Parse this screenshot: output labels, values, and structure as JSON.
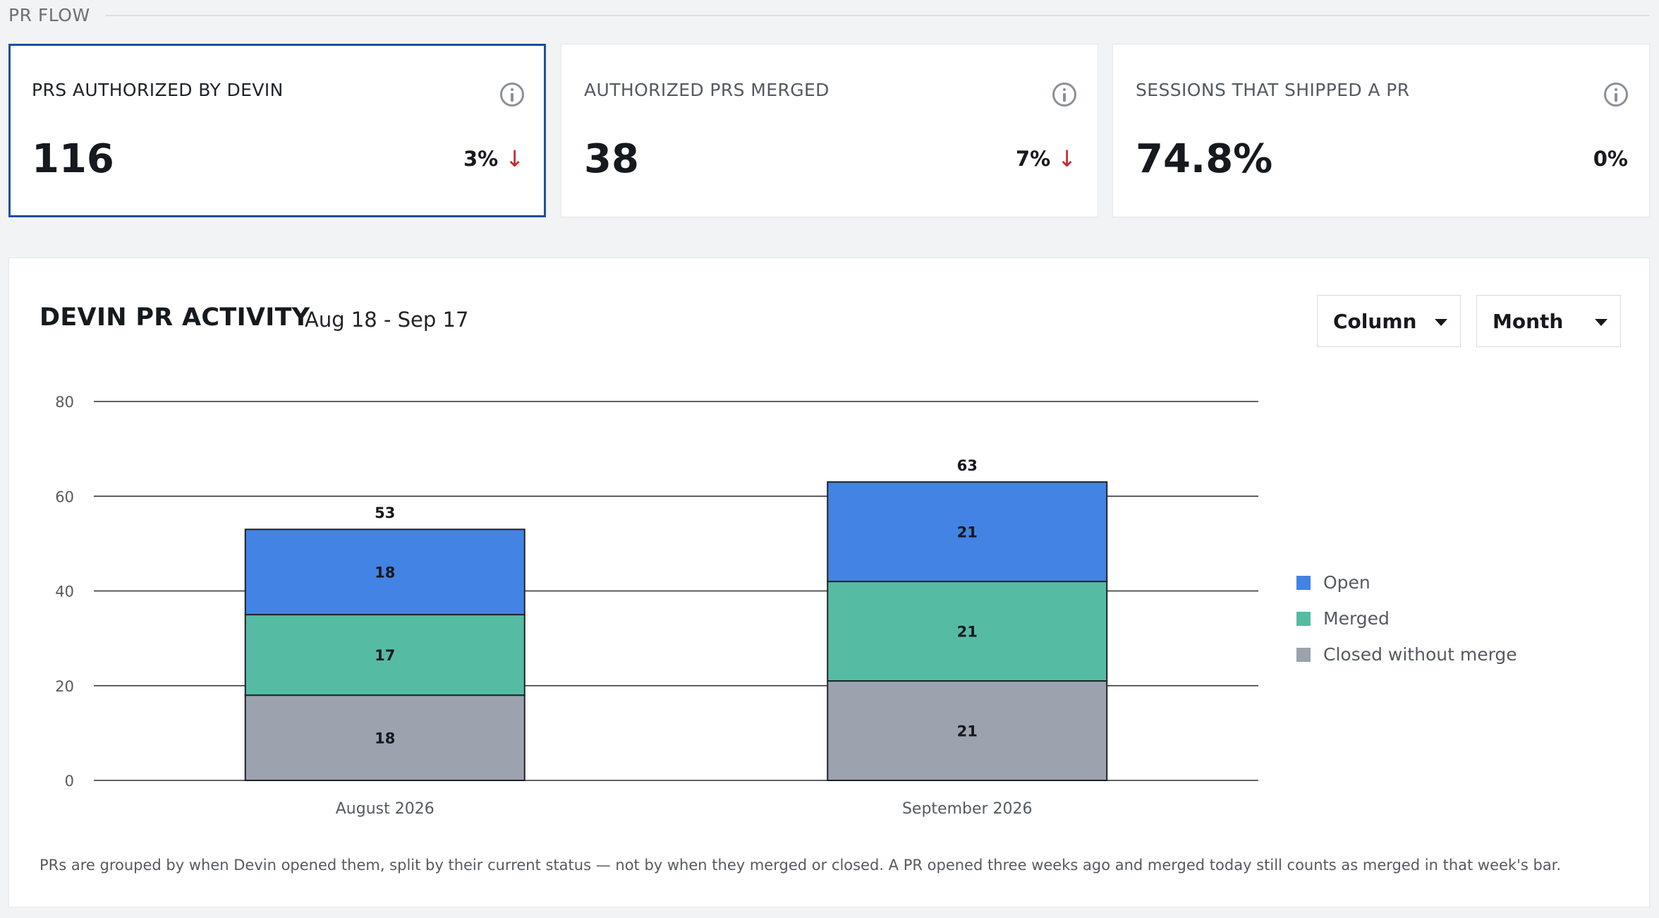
{
  "section": {
    "title": "PR FLOW"
  },
  "kpis": [
    {
      "label": "PRS AUTHORIZED BY DEVIN",
      "value": "116",
      "delta": "3%",
      "direction": "down",
      "selected": true,
      "info_icon": "info-icon"
    },
    {
      "label": "AUTHORIZED PRS MERGED",
      "value": "38",
      "delta": "7%",
      "direction": "down",
      "selected": false,
      "info_icon": "info-icon"
    },
    {
      "label": "SESSIONS THAT SHIPPED A PR",
      "value": "74.8%",
      "delta": "0%",
      "direction": "none",
      "selected": false,
      "info_icon": "info-icon"
    }
  ],
  "chart": {
    "title": "DEVIN PR ACTIVITY",
    "range": "Aug 18 - Sep 17",
    "chart_type_select": "Column",
    "period_select": "Month",
    "footnote": "PRs are grouped by when Devin opened them, split by their current status — not by when they merged or closed. A PR opened three weeks ago and merged today still counts as merged in that week's bar."
  },
  "chart_data": {
    "type": "bar",
    "stacked": true,
    "categories": [
      "August 2026",
      "September 2026"
    ],
    "series": [
      {
        "name": "Closed without merge",
        "values": [
          18,
          21
        ],
        "color": "#9ca3ae"
      },
      {
        "name": "Merged",
        "values": [
          17,
          21
        ],
        "color": "#55bca3"
      },
      {
        "name": "Open",
        "values": [
          18,
          21
        ],
        "color": "#4383e3"
      }
    ],
    "totals": [
      53,
      63
    ],
    "ylim": [
      0,
      80
    ],
    "yticks": [
      0,
      20,
      40,
      60,
      80
    ],
    "grid": true,
    "legend_position": "right",
    "legend_order": [
      "Open",
      "Merged",
      "Closed without merge"
    ]
  },
  "colors": {
    "selected_border": "#1e4f9e",
    "down_arrow": "#c8262c"
  }
}
